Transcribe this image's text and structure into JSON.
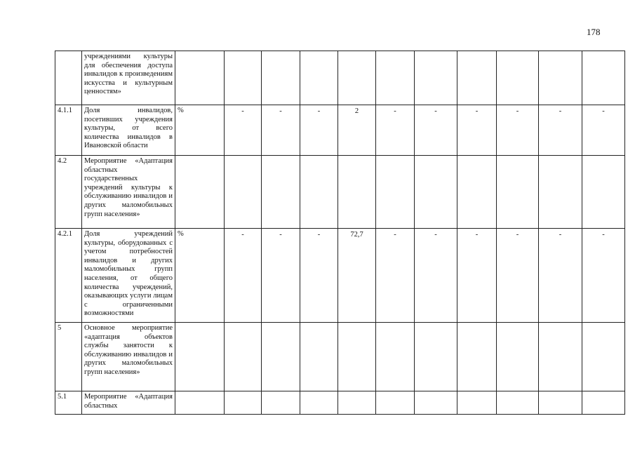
{
  "page_number": "178",
  "columns_values_count": 10,
  "rows": [
    {
      "num": "",
      "desc": "учреждениями культуры для обеспечения доступа инвалидов к произведениям искусства и культурным ценностям»",
      "unit": "",
      "values": [
        "",
        "",
        "",
        "",
        "",
        "",
        "",
        "",
        "",
        ""
      ]
    },
    {
      "num": "4.1.1",
      "desc": "Доля инвалидов, посетивших учреждения культуры, от всего количества инвалидов в Ивановской области",
      "unit": "%",
      "values": [
        "-",
        "-",
        "-",
        "2",
        "-",
        "-",
        "-",
        "-",
        "-",
        "-"
      ]
    },
    {
      "num": "4.2",
      "desc": "Мероприятие «Адаптация областных государственных учреждений культуры к обслуживанию инвалидов и других маломобильных групп населения»",
      "unit": "",
      "values": [
        "",
        "",
        "",
        "",
        "",
        "",
        "",
        "",
        "",
        ""
      ]
    },
    {
      "num": "4.2.1",
      "desc": "Доля учреждений культуры, оборудованных с учетом потребностей инвалидов и других маломобильных групп населения, от общего количества учреждений, оказывающих услуги лицам с ограниченными возможностями",
      "unit": "%",
      "values": [
        "-",
        "-",
        "-",
        "72,7",
        "-",
        "-",
        "-",
        "-",
        "-",
        "-"
      ]
    },
    {
      "num": "5",
      "desc": "Основное мероприятие «адаптация объектов службы занятости к обслуживанию инвалидов и других маломобильных групп населения»",
      "unit": "",
      "values": [
        "",
        "",
        "",
        "",
        "",
        "",
        "",
        "",
        "",
        ""
      ]
    },
    {
      "num": "5.1",
      "desc": "Мероприятие «Адаптация областных",
      "unit": "",
      "values": [
        "",
        "",
        "",
        "",
        "",
        "",
        "",
        "",
        "",
        ""
      ]
    }
  ]
}
